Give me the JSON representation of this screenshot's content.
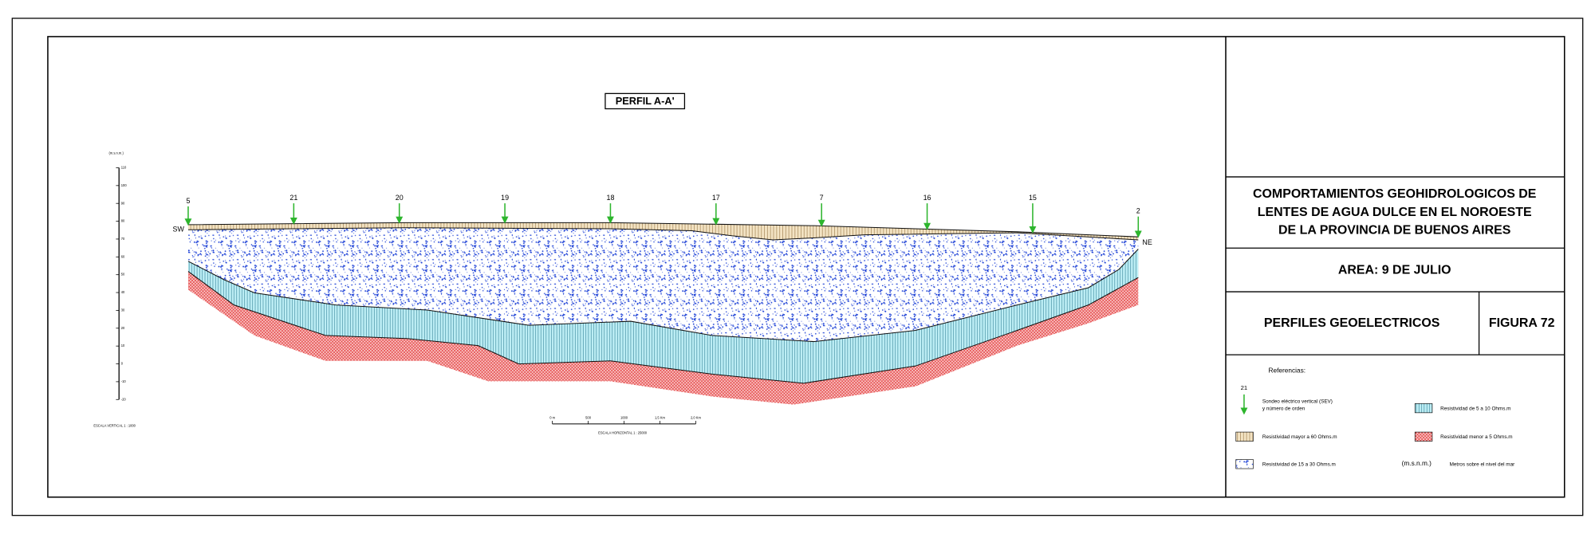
{
  "profile": {
    "title": "PERFIL A-A'",
    "left_label": "SW",
    "right_label": "NE",
    "sevs": [
      "5",
      "21",
      "20",
      "19",
      "18",
      "17",
      "7",
      "16",
      "15",
      "2"
    ],
    "vertical_scale": {
      "unit": "(m.s.n.m.)",
      "ticks": [
        110,
        100,
        90,
        80,
        70,
        60,
        50,
        40,
        30,
        20,
        10,
        0,
        -10,
        -20
      ],
      "caption": "ESCALA VERTICAL 1 : 1000"
    },
    "horizontal_scale": {
      "labels": [
        "0 m",
        "500",
        "1000",
        "1,5 Km",
        "2,0 Km"
      ],
      "caption": "ESCALA HORIZONTAL 1 : 25000"
    }
  },
  "title_block": {
    "title_lines": [
      "COMPORTAMIENTOS GEOHIDROLOGICOS DE",
      "LENTES DE AGUA DULCE EN EL NOROESTE",
      "DE LA PROVINCIA DE BUENOS AIRES"
    ],
    "area": "AREA: 9 DE JULIO",
    "subject": "PERFILES GEOELECTRICOS",
    "figure": "FIGURA 72"
  },
  "legend": {
    "heading": "Referencias:",
    "sev_example": "21",
    "sev_text": [
      "Sondeo eléctrico vertical (SEV)",
      "y número de orden"
    ],
    "high": "Resistividad mayor a 60 Ohms.m",
    "mid": "Resistividad de 15 a 30 Ohms.m",
    "low_mid": "Resistividad de 5 a 10 Ohms.m",
    "low": "Resistividad menor a 5 Ohms.m",
    "msnm": "(m.s.n.m.)",
    "msnm_text": "Metros sobre el nivel del mar"
  }
}
